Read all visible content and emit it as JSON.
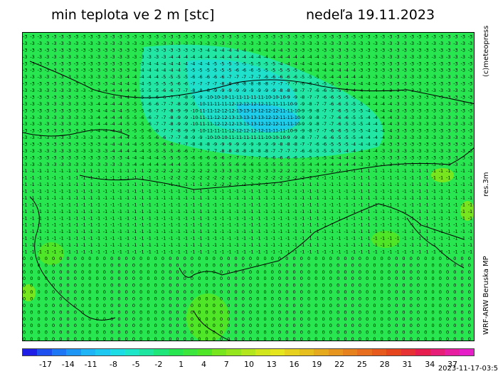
{
  "title": "min teplota ve 2 m [stc]",
  "date": "nedeľa 19.11.2023",
  "credit": "(c)meteopress",
  "resolution": "res.3m",
  "model": "WRF-ARW Beruska MP",
  "timestamp": "2023-11-17-03:5",
  "legend": {
    "ticks": [
      "-17",
      "-14",
      "-11",
      "-8",
      "-5",
      "-2",
      "1",
      "4",
      "7",
      "10",
      "13",
      "16",
      "19",
      "22",
      "25",
      "28",
      "31",
      "34",
      "37"
    ],
    "colors": [
      "#1e1ee6",
      "#1e50f0",
      "#1e78f5",
      "#1e96f5",
      "#1eb4f5",
      "#1ec8f0",
      "#1edce6",
      "#1ee6c8",
      "#1ee6a0",
      "#1ee678",
      "#28e650",
      "#3ce63c",
      "#50e628",
      "#78e61e",
      "#96e61e",
      "#b4e61e",
      "#d2e61e",
      "#e6e61e",
      "#e6d21e",
      "#e6be1e",
      "#e6aa1e",
      "#e6961e",
      "#e6821e",
      "#e66e1e",
      "#e65a1e",
      "#e6461e",
      "#e63232",
      "#e61e50",
      "#e61e78",
      "#e61ea0",
      "#e61ec8"
    ]
  },
  "map": {
    "base_color": "#28e650",
    "cold_color": "#1ec8f0",
    "warm_color": "#78e61e"
  }
}
